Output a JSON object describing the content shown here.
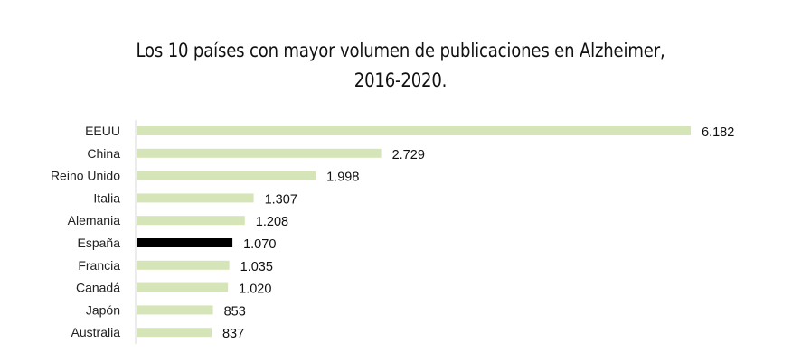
{
  "chart_data": {
    "type": "bar",
    "orientation": "horizontal",
    "title_lines": [
      "Los 10 países con mayor volumen de publicaciones en Alzheimer,",
      "2016-2020."
    ],
    "categories": [
      "EEUU",
      "China",
      "Reino Unido",
      "Italia",
      "Alemania",
      "España",
      "Francia",
      "Canadá",
      "Japón",
      "Australia"
    ],
    "values": [
      6182,
      2729,
      1998,
      1307,
      1208,
      1070,
      1035,
      1020,
      853,
      837
    ],
    "value_labels": [
      "6.182",
      "2.729",
      "1.998",
      "1.307",
      "1.208",
      "1.070",
      "1.035",
      "1.020",
      "853",
      "837"
    ],
    "highlight_category": "España",
    "colors": {
      "bar": "#d6e5b8",
      "highlight": "#000000",
      "axis": "#d9d9d9"
    },
    "xlim": [
      0,
      6182
    ],
    "grid": false,
    "legend": "none"
  }
}
